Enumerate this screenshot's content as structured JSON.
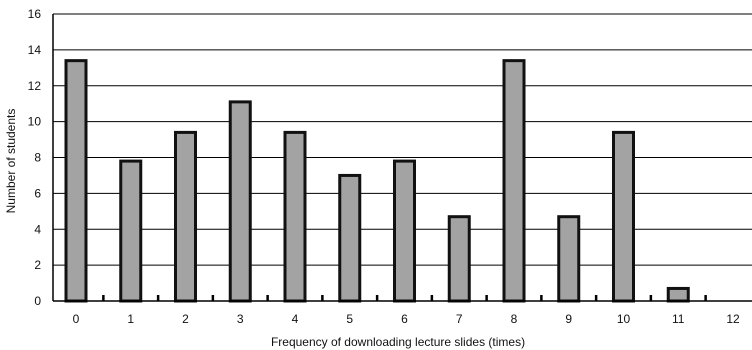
{
  "chart_data": {
    "type": "bar",
    "title": "",
    "xlabel": "Frequency of downloading lecture slides (times)",
    "ylabel": "Number of students",
    "categories": [
      "0",
      "1",
      "2",
      "3",
      "4",
      "5",
      "6",
      "7",
      "8",
      "9",
      "10",
      "11",
      "12"
    ],
    "values": [
      13.4,
      7.8,
      9.4,
      11.1,
      9.4,
      7.0,
      7.8,
      4.7,
      13.4,
      4.7,
      9.4,
      0.7,
      0
    ],
    "ylim": [
      0,
      16
    ],
    "yticks": [
      "0",
      "2",
      "4",
      "6",
      "8",
      "10",
      "12",
      "14",
      "16"
    ],
    "grid": "horizontal",
    "legend": "none",
    "bar_color": "#a3a3a3",
    "bar_edge_color": "#111111",
    "grid_color": "#000000"
  }
}
